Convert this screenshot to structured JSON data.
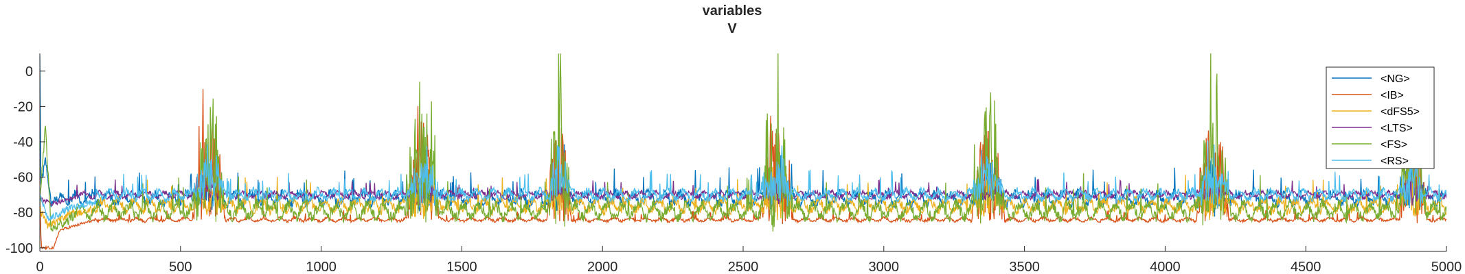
{
  "chart_data": {
    "type": "line",
    "title": "variables",
    "subtitle": "V",
    "xlabel": "",
    "ylabel": "",
    "xlim": [
      0,
      5000
    ],
    "ylim": [
      -102,
      10
    ],
    "xticks": [
      0,
      500,
      1000,
      1500,
      2000,
      2500,
      3000,
      3500,
      4000,
      4500,
      5000
    ],
    "yticks": [
      0,
      -20,
      -40,
      -60,
      -80,
      -100
    ],
    "grid": false,
    "legend_position": "top-right",
    "series": [
      {
        "name": "<NG>",
        "color": "#0072BD",
        "baseline": -72,
        "noise": 5,
        "burst_peak": -50,
        "start": [
          [
            0,
            8
          ],
          [
            4,
            -65
          ],
          [
            20,
            -50
          ],
          [
            40,
            -75
          ],
          [
            80,
            -70
          ]
        ]
      },
      {
        "name": "<IB>",
        "color": "#D95319",
        "baseline": -84,
        "noise": 1.5,
        "burst_peak": -25,
        "start": [
          [
            0,
            -70
          ],
          [
            5,
            -100
          ],
          [
            50,
            -100
          ],
          [
            70,
            -90
          ],
          [
            200,
            -84
          ]
        ]
      },
      {
        "name": "<dFS5>",
        "color": "#EDB120",
        "baseline": -76,
        "noise": 5,
        "burst_peak": -55,
        "start": [
          [
            0,
            -78
          ],
          [
            30,
            -88
          ],
          [
            80,
            -82
          ],
          [
            200,
            -78
          ]
        ]
      },
      {
        "name": "<LTS>",
        "color": "#7E2F8E",
        "baseline": -70,
        "noise": 2.5,
        "burst_peak": -60,
        "start": [
          [
            0,
            -72
          ],
          [
            40,
            -75
          ],
          [
            120,
            -72
          ]
        ]
      },
      {
        "name": "<FS>",
        "color": "#77AC30",
        "baseline": -79,
        "noise": 6,
        "burst_peak": -8,
        "start": [
          [
            0,
            -75
          ],
          [
            20,
            -30
          ],
          [
            40,
            -90
          ],
          [
            120,
            -82
          ]
        ]
      },
      {
        "name": "<RS>",
        "color": "#4DBEEE",
        "baseline": -70,
        "noise": 4,
        "burst_peak": -45,
        "start": [
          [
            0,
            -70
          ],
          [
            30,
            -84
          ],
          [
            100,
            -78
          ],
          [
            200,
            -74
          ]
        ]
      }
    ],
    "bursts": [
      {
        "center": 600,
        "width": 60
      },
      {
        "center": 1360,
        "width": 60
      },
      {
        "center": 1845,
        "width": 45
      },
      {
        "center": 2620,
        "width": 60
      },
      {
        "center": 3370,
        "width": 60
      },
      {
        "center": 4170,
        "width": 60
      },
      {
        "center": 4880,
        "width": 50
      }
    ]
  }
}
